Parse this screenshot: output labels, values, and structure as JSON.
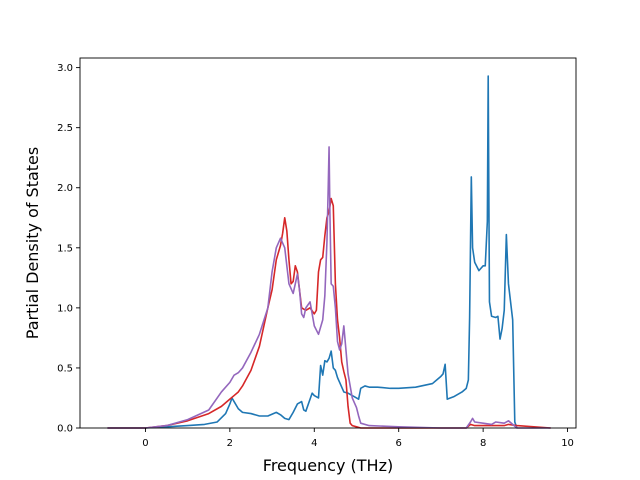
{
  "chart_data": {
    "type": "line",
    "title": "",
    "xlabel": "Frequency (THz)",
    "ylabel": "Partial Density of States",
    "xlim": [
      -1.55,
      10.2
    ],
    "ylim": [
      0.0,
      3.08
    ],
    "xticks": [
      0,
      2,
      4,
      6,
      8,
      10
    ],
    "yticks": [
      0.0,
      0.5,
      1.0,
      1.5,
      2.0,
      2.5,
      3.0
    ],
    "xtick_labels": [
      "0",
      "2",
      "4",
      "6",
      "8",
      "10"
    ],
    "ytick_labels": [
      "0.0",
      "0.5",
      "1.0",
      "1.5",
      "2.0",
      "2.5",
      "3.0"
    ],
    "grid": false,
    "legend": "none",
    "series": [
      {
        "color": "#1f77b4",
        "x": [
          -0.9,
          0.0,
          0.5,
          1.0,
          1.4,
          1.7,
          1.9,
          2.0,
          2.05,
          2.1,
          2.2,
          2.3,
          2.5,
          2.7,
          2.9,
          3.1,
          3.2,
          3.3,
          3.4,
          3.5,
          3.6,
          3.7,
          3.75,
          3.8,
          3.9,
          3.95,
          4.0,
          4.1,
          4.15,
          4.2,
          4.25,
          4.3,
          4.35,
          4.4,
          4.45,
          4.5,
          4.55,
          4.6,
          4.7,
          4.8,
          4.9,
          5.0,
          5.05,
          5.1,
          5.2,
          5.3,
          5.5,
          5.8,
          6.0,
          6.4,
          6.8,
          7.0,
          7.05,
          7.1,
          7.15,
          7.3,
          7.5,
          7.6,
          7.65,
          7.68,
          7.72,
          7.75,
          7.8,
          7.9,
          8.0,
          8.05,
          8.1,
          8.12,
          8.15,
          8.2,
          8.3,
          8.35,
          8.4,
          8.45,
          8.5,
          8.55,
          8.6,
          8.65,
          8.7,
          8.75,
          8.8
        ],
        "y": [
          0.0,
          0.0,
          0.01,
          0.02,
          0.03,
          0.05,
          0.12,
          0.2,
          0.25,
          0.22,
          0.16,
          0.13,
          0.12,
          0.1,
          0.1,
          0.13,
          0.11,
          0.08,
          0.07,
          0.13,
          0.2,
          0.22,
          0.15,
          0.14,
          0.24,
          0.29,
          0.27,
          0.25,
          0.52,
          0.44,
          0.56,
          0.55,
          0.58,
          0.64,
          0.5,
          0.48,
          0.42,
          0.38,
          0.3,
          0.29,
          0.27,
          0.25,
          0.24,
          0.33,
          0.35,
          0.34,
          0.34,
          0.33,
          0.33,
          0.34,
          0.37,
          0.43,
          0.45,
          0.53,
          0.24,
          0.26,
          0.3,
          0.33,
          0.4,
          0.92,
          2.09,
          1.5,
          1.38,
          1.31,
          1.35,
          1.35,
          1.72,
          2.93,
          1.05,
          0.93,
          0.92,
          0.93,
          0.74,
          0.83,
          0.98,
          1.61,
          1.2,
          1.05,
          0.9,
          0.05,
          0.0
        ]
      },
      {
        "color": "#d62728",
        "x": [
          -0.9,
          0.0,
          0.5,
          1.0,
          1.5,
          1.8,
          2.0,
          2.1,
          2.2,
          2.3,
          2.5,
          2.7,
          2.9,
          3.0,
          3.1,
          3.2,
          3.25,
          3.3,
          3.35,
          3.4,
          3.45,
          3.5,
          3.55,
          3.6,
          3.65,
          3.7,
          3.8,
          3.9,
          4.0,
          4.05,
          4.1,
          4.15,
          4.2,
          4.25,
          4.3,
          4.35,
          4.4,
          4.45,
          4.5,
          4.55,
          4.6,
          4.65,
          4.7,
          4.75,
          4.8,
          4.85,
          4.9,
          5.0,
          5.1,
          5.5,
          6.0,
          7.0,
          7.6,
          7.7,
          7.8,
          8.0,
          8.2,
          8.5,
          8.6,
          8.8,
          9.6
        ],
        "y": [
          0.0,
          0.0,
          0.02,
          0.06,
          0.12,
          0.18,
          0.24,
          0.27,
          0.3,
          0.35,
          0.48,
          0.68,
          1.0,
          1.15,
          1.4,
          1.52,
          1.62,
          1.75,
          1.64,
          1.4,
          1.2,
          1.22,
          1.35,
          1.3,
          1.15,
          1.0,
          0.98,
          1.0,
          0.95,
          0.98,
          1.3,
          1.4,
          1.42,
          1.6,
          1.75,
          1.8,
          1.91,
          1.85,
          1.2,
          0.9,
          0.75,
          0.55,
          0.47,
          0.4,
          0.18,
          0.04,
          0.02,
          0.01,
          0.0,
          0.0,
          0.0,
          0.0,
          0.0,
          0.03,
          0.02,
          0.02,
          0.02,
          0.02,
          0.03,
          0.02,
          0.0
        ]
      },
      {
        "color": "#9467bd",
        "x": [
          -0.9,
          0.0,
          0.5,
          1.0,
          1.5,
          1.8,
          2.0,
          2.1,
          2.2,
          2.3,
          2.5,
          2.7,
          2.9,
          3.0,
          3.1,
          3.2,
          3.3,
          3.4,
          3.5,
          3.55,
          3.6,
          3.65,
          3.7,
          3.75,
          3.8,
          3.9,
          4.0,
          4.1,
          4.2,
          4.25,
          4.3,
          4.33,
          4.35,
          4.37,
          4.4,
          4.45,
          4.5,
          4.55,
          4.6,
          4.65,
          4.7,
          4.8,
          4.9,
          5.0,
          5.05,
          5.1,
          5.3,
          6.0,
          7.0,
          7.6,
          7.7,
          7.75,
          7.8,
          8.0,
          8.2,
          8.3,
          8.5,
          8.6,
          8.7,
          8.8,
          9.6
        ],
        "y": [
          0.0,
          0.0,
          0.02,
          0.07,
          0.15,
          0.3,
          0.38,
          0.44,
          0.46,
          0.5,
          0.63,
          0.78,
          1.0,
          1.3,
          1.5,
          1.58,
          1.5,
          1.2,
          1.12,
          1.2,
          1.28,
          1.15,
          0.95,
          0.92,
          1.0,
          1.05,
          0.85,
          0.78,
          0.9,
          1.1,
          1.55,
          2.0,
          2.34,
          1.8,
          1.2,
          1.18,
          1.0,
          0.72,
          0.65,
          0.7,
          0.85,
          0.45,
          0.25,
          0.17,
          0.1,
          0.04,
          0.02,
          0.01,
          0.0,
          0.0,
          0.05,
          0.08,
          0.05,
          0.04,
          0.03,
          0.05,
          0.04,
          0.06,
          0.03,
          0.0,
          0.0
        ]
      }
    ]
  }
}
